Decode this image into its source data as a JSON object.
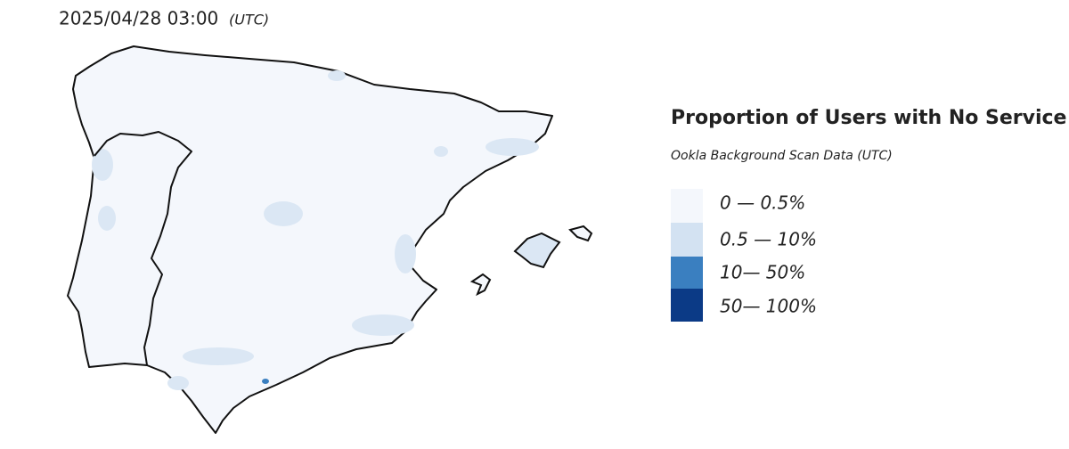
{
  "timestamp": "2025/04/28 03:00",
  "timezone": "(UTC)",
  "legend": {
    "title": "Proportion of Users with No Service",
    "subtitle": "Ookla Background Scan Data (UTC)",
    "items": [
      {
        "label": "0 — 0.5%",
        "color": "#f4f7fc"
      },
      {
        "label": "0.5 — 10%",
        "color": "#d3e2f2"
      },
      {
        "label": "10— 50%",
        "color": "#3a7fc0"
      },
      {
        "label": "50— 100%",
        "color": "#0b3a86"
      }
    ]
  }
}
